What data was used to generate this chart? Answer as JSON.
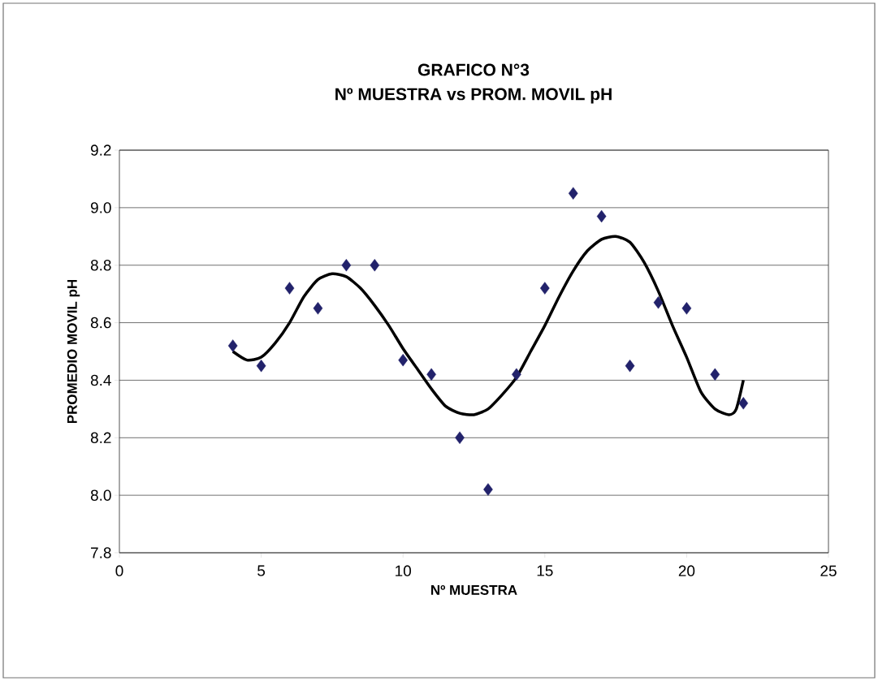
{
  "chart_data": {
    "type": "scatter",
    "title": "GRAFICO N°3",
    "subtitle": "Nº MUESTRA vs PROM. MOVIL pH",
    "xlabel": "Nº MUESTRA",
    "ylabel": "PROMEDIO MOVIL pH",
    "xlim": [
      0,
      25
    ],
    "xticks": [
      0,
      5,
      10,
      15,
      20,
      25
    ],
    "ylim": [
      7.8,
      9.2
    ],
    "yticks": [
      {
        "value": 7.8,
        "label": "7.8"
      },
      {
        "value": 8.0,
        "label": "8.0"
      },
      {
        "value": 8.2,
        "label": "8.2"
      },
      {
        "value": 8.4,
        "label": "8.4"
      },
      {
        "value": 8.6,
        "label": "8.6"
      },
      {
        "value": 8.8,
        "label": "8.8"
      },
      {
        "value": 9.0,
        "label": "9.0"
      },
      {
        "value": 9.2,
        "label": "9.2"
      }
    ],
    "grid": "y",
    "marker": "diamond",
    "series": [
      {
        "color": "#22226b",
        "x": [
          4,
          5,
          6,
          7,
          8,
          9,
          10,
          11,
          12,
          13,
          14,
          15,
          16,
          17,
          18,
          19,
          20,
          21,
          22
        ],
        "values": [
          8.52,
          8.45,
          8.72,
          8.65,
          8.8,
          8.8,
          8.47,
          8.42,
          8.2,
          8.02,
          8.42,
          8.72,
          9.05,
          8.97,
          8.45,
          8.67,
          8.65,
          8.42,
          8.32
        ]
      },
      {
        "type": "line",
        "marker": "none",
        "color": "#000000",
        "x": [
          4,
          4.5,
          5,
          5.5,
          6,
          6.5,
          7,
          7.5,
          8,
          8.5,
          9,
          9.5,
          10,
          10.5,
          11,
          11.5,
          12,
          12.5,
          13,
          13.5,
          14,
          14.5,
          15,
          15.5,
          16,
          16.5,
          17,
          17.5,
          18,
          18.5,
          19,
          19.5,
          20,
          20.5,
          21,
          21.5,
          21.75,
          22
        ],
        "values": [
          8.5,
          8.47,
          8.48,
          8.53,
          8.6,
          8.69,
          8.75,
          8.77,
          8.76,
          8.72,
          8.66,
          8.59,
          8.51,
          8.44,
          8.37,
          8.31,
          8.285,
          8.28,
          8.3,
          8.35,
          8.41,
          8.5,
          8.59,
          8.69,
          8.78,
          8.85,
          8.89,
          8.9,
          8.88,
          8.81,
          8.71,
          8.59,
          8.48,
          8.36,
          8.3,
          8.28,
          8.3,
          8.4
        ]
      }
    ]
  }
}
